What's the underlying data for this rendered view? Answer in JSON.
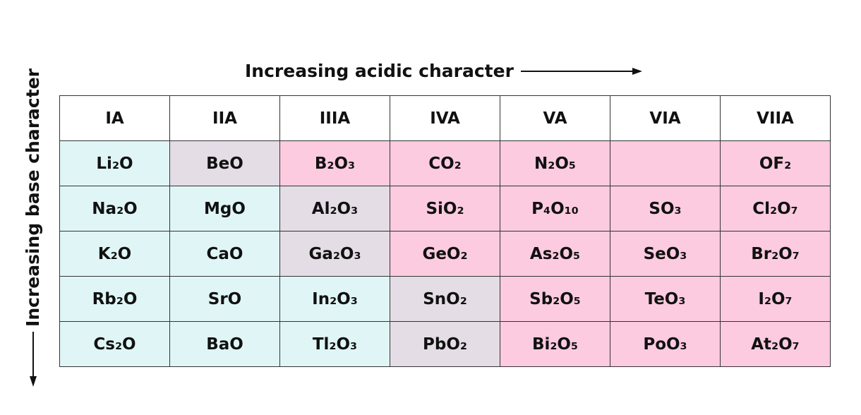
{
  "header": {
    "title": "Increasing acidic character",
    "side_title": "Increasing base character"
  },
  "table": {
    "columns": [
      "IA",
      "IIA",
      "IIIA",
      "IVA",
      "VA",
      "VIA",
      "VIIA"
    ],
    "rows": [
      [
        "Li₂O",
        "BeO",
        "B₂O₃",
        "CO₂",
        "N₂O₅",
        null,
        "OF₂"
      ],
      [
        "Na₂O",
        "MgO",
        "Al₂O₃",
        "SiO₂",
        "P₄O₁₀",
        "SO₃",
        "Cl₂O₇"
      ],
      [
        "K₂O",
        "CaO",
        "Ga₂O₃",
        "GeO₂",
        "As₂O₅",
        "SeO₃",
        "Br₂O₇"
      ],
      [
        "Rb₂O",
        "SrO",
        "In₂O₃",
        "SnO₂",
        "Sb₂O₅",
        "TeO₃",
        "I₂O₇"
      ],
      [
        "Cs₂O",
        "BaO",
        "Tl₂O₃",
        "PbO₂",
        "Bi₂O₅",
        "PoO₃",
        "At₂O₇"
      ]
    ]
  }
}
